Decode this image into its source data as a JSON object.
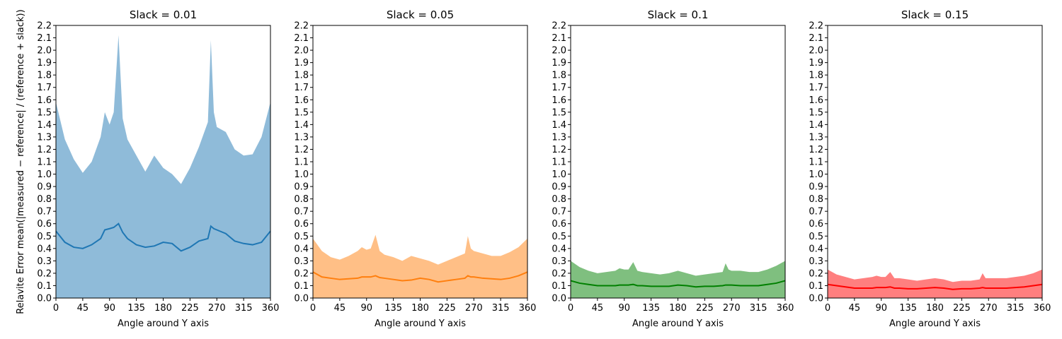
{
  "chart_data": [
    {
      "type": "area",
      "title": "Slack = 0.01",
      "xlabel": "Angle around Y axis",
      "ylabel": "Relavite Error mean(|measured − reference| / (reference + slack))",
      "x": [
        0,
        15,
        30,
        45,
        60,
        75,
        82,
        90,
        97,
        105,
        112,
        120,
        135,
        150,
        165,
        180,
        195,
        210,
        225,
        240,
        255,
        260,
        265,
        270,
        285,
        300,
        315,
        330,
        345,
        360
      ],
      "series": [
        {
          "color": "#1f77b4",
          "fill": true,
          "alpha": 0.5,
          "values": [
            1.58,
            1.28,
            1.12,
            1.01,
            1.1,
            1.3,
            1.5,
            1.4,
            1.5,
            2.12,
            1.45,
            1.28,
            1.15,
            1.02,
            1.15,
            1.05,
            1.0,
            0.92,
            1.05,
            1.22,
            1.42,
            2.08,
            1.5,
            1.38,
            1.34,
            1.2,
            1.15,
            1.16,
            1.3,
            1.58
          ]
        },
        {
          "color": "#1f77b4",
          "fill": false,
          "values": [
            0.54,
            0.45,
            0.41,
            0.4,
            0.43,
            0.48,
            0.55,
            0.56,
            0.57,
            0.6,
            0.53,
            0.48,
            0.43,
            0.41,
            0.42,
            0.45,
            0.44,
            0.38,
            0.41,
            0.46,
            0.48,
            0.58,
            0.56,
            0.55,
            0.52,
            0.46,
            0.44,
            0.43,
            0.45,
            0.54
          ]
        }
      ],
      "xlim": [
        0,
        360
      ],
      "xticks": [
        0,
        45,
        90,
        135,
        180,
        225,
        270,
        315,
        360
      ],
      "ylim": [
        0,
        2.2
      ],
      "yticks": [
        {
          "value": 0,
          "label": "0.0"
        },
        0.1,
        0.2,
        0.3,
        0.4,
        0.5,
        0.6,
        0.7,
        0.8,
        0.9,
        {
          "value": 1,
          "label": "1.0"
        },
        1.1,
        1.2,
        1.3,
        1.4,
        1.5,
        1.6,
        1.7,
        1.8,
        1.9,
        {
          "value": 2,
          "label": "2.0"
        },
        2.1,
        2.2
      ]
    },
    {
      "type": "area",
      "title": "Slack = 0.05",
      "xlabel": "Angle around Y axis",
      "x": [
        0,
        15,
        30,
        45,
        60,
        75,
        82,
        90,
        97,
        105,
        112,
        120,
        135,
        150,
        165,
        180,
        195,
        210,
        225,
        240,
        255,
        260,
        265,
        270,
        285,
        300,
        315,
        330,
        345,
        360
      ],
      "series": [
        {
          "color": "#ff7f0e",
          "fill": true,
          "alpha": 0.5,
          "values": [
            0.48,
            0.38,
            0.33,
            0.31,
            0.34,
            0.38,
            0.41,
            0.39,
            0.4,
            0.51,
            0.38,
            0.35,
            0.33,
            0.3,
            0.34,
            0.32,
            0.3,
            0.27,
            0.3,
            0.33,
            0.36,
            0.5,
            0.4,
            0.38,
            0.36,
            0.34,
            0.34,
            0.37,
            0.41,
            0.48
          ]
        },
        {
          "color": "#ff7f0e",
          "fill": false,
          "values": [
            0.21,
            0.17,
            0.16,
            0.15,
            0.155,
            0.16,
            0.17,
            0.17,
            0.17,
            0.18,
            0.165,
            0.16,
            0.15,
            0.14,
            0.145,
            0.16,
            0.15,
            0.13,
            0.14,
            0.15,
            0.16,
            0.18,
            0.17,
            0.17,
            0.16,
            0.155,
            0.15,
            0.16,
            0.18,
            0.21
          ]
        }
      ],
      "xlim": [
        0,
        360
      ],
      "xticks": [
        0,
        45,
        90,
        135,
        180,
        225,
        270,
        315,
        360
      ],
      "ylim": [
        0,
        2.2
      ],
      "yticks": [
        {
          "value": 0,
          "label": "0.0"
        },
        0.1,
        0.2,
        0.3,
        0.4,
        0.5,
        0.6,
        0.7,
        0.8,
        0.9,
        {
          "value": 1,
          "label": "1.0"
        },
        1.1,
        1.2,
        1.3,
        1.4,
        1.5,
        1.6,
        1.7,
        1.8,
        1.9,
        {
          "value": 2,
          "label": "2.0"
        },
        2.1,
        2.2
      ]
    },
    {
      "type": "area",
      "title": "Slack = 0.1",
      "xlabel": "Angle around Y axis",
      "x": [
        0,
        15,
        30,
        45,
        60,
        75,
        82,
        90,
        97,
        105,
        112,
        120,
        135,
        150,
        165,
        180,
        195,
        210,
        225,
        240,
        255,
        260,
        265,
        270,
        285,
        300,
        315,
        330,
        345,
        360
      ],
      "series": [
        {
          "color": "#008000",
          "fill": true,
          "alpha": 0.5,
          "values": [
            0.3,
            0.25,
            0.22,
            0.2,
            0.21,
            0.22,
            0.24,
            0.23,
            0.23,
            0.29,
            0.22,
            0.21,
            0.2,
            0.19,
            0.2,
            0.22,
            0.2,
            0.18,
            0.19,
            0.2,
            0.21,
            0.28,
            0.23,
            0.22,
            0.22,
            0.21,
            0.21,
            0.23,
            0.26,
            0.3
          ]
        },
        {
          "color": "#008000",
          "fill": false,
          "values": [
            0.14,
            0.12,
            0.11,
            0.1,
            0.1,
            0.1,
            0.105,
            0.105,
            0.105,
            0.11,
            0.1,
            0.1,
            0.095,
            0.095,
            0.095,
            0.105,
            0.1,
            0.09,
            0.095,
            0.095,
            0.1,
            0.105,
            0.105,
            0.105,
            0.1,
            0.1,
            0.1,
            0.11,
            0.12,
            0.14
          ]
        }
      ],
      "xlim": [
        0,
        360
      ],
      "xticks": [
        0,
        45,
        90,
        135,
        180,
        225,
        270,
        315,
        360
      ],
      "ylim": [
        0,
        2.2
      ],
      "yticks": [
        {
          "value": 0,
          "label": "0.0"
        },
        0.1,
        0.2,
        0.3,
        0.4,
        0.5,
        0.6,
        0.7,
        0.8,
        0.9,
        {
          "value": 1,
          "label": "1.0"
        },
        1.1,
        1.2,
        1.3,
        1.4,
        1.5,
        1.6,
        1.7,
        1.8,
        1.9,
        {
          "value": 2,
          "label": "2.0"
        },
        2.1,
        2.2
      ]
    },
    {
      "type": "area",
      "title": "Slack = 0.15",
      "xlabel": "Angle around Y axis",
      "x": [
        0,
        15,
        30,
        45,
        60,
        75,
        82,
        90,
        97,
        105,
        112,
        120,
        135,
        150,
        165,
        180,
        195,
        210,
        225,
        240,
        255,
        260,
        265,
        270,
        285,
        300,
        315,
        330,
        345,
        360
      ],
      "series": [
        {
          "color": "#ff0000",
          "fill": true,
          "alpha": 0.5,
          "values": [
            0.23,
            0.19,
            0.17,
            0.15,
            0.16,
            0.17,
            0.18,
            0.17,
            0.17,
            0.21,
            0.16,
            0.16,
            0.15,
            0.14,
            0.15,
            0.16,
            0.15,
            0.13,
            0.14,
            0.14,
            0.15,
            0.2,
            0.16,
            0.16,
            0.16,
            0.16,
            0.17,
            0.18,
            0.2,
            0.23
          ]
        },
        {
          "color": "#ff0000",
          "fill": false,
          "values": [
            0.11,
            0.1,
            0.09,
            0.08,
            0.08,
            0.08,
            0.085,
            0.085,
            0.085,
            0.09,
            0.08,
            0.08,
            0.075,
            0.075,
            0.08,
            0.085,
            0.08,
            0.07,
            0.075,
            0.075,
            0.08,
            0.085,
            0.08,
            0.08,
            0.08,
            0.08,
            0.085,
            0.09,
            0.1,
            0.11
          ]
        }
      ],
      "xlim": [
        0,
        360
      ],
      "xticks": [
        0,
        45,
        90,
        135,
        180,
        225,
        270,
        315,
        360
      ],
      "ylim": [
        0,
        2.2
      ],
      "yticks": [
        {
          "value": 0,
          "label": "0.0"
        },
        0.1,
        0.2,
        0.3,
        0.4,
        0.5,
        0.6,
        0.7,
        0.8,
        0.9,
        {
          "value": 1,
          "label": "1.0"
        },
        1.1,
        1.2,
        1.3,
        1.4,
        1.5,
        1.6,
        1.7,
        1.8,
        1.9,
        {
          "value": 2,
          "label": "2.0"
        },
        2.1,
        2.2
      ]
    }
  ]
}
